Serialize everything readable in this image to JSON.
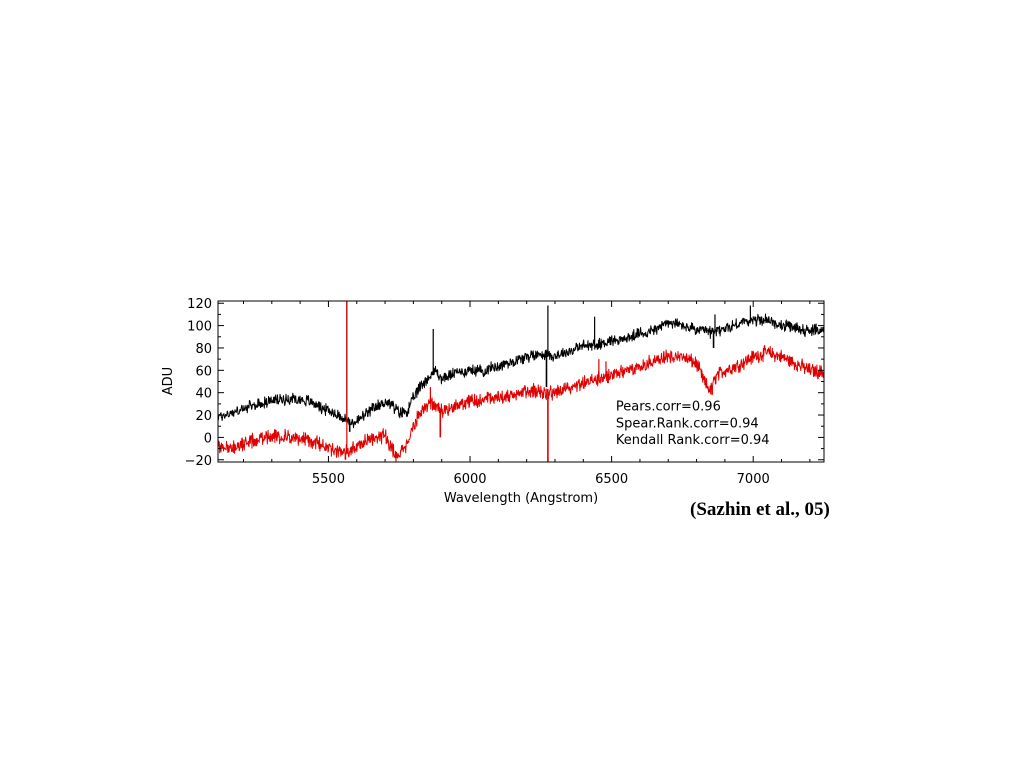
{
  "chart_data": {
    "type": "line",
    "title": "",
    "xlabel": "Wavelength (Angstrom)",
    "ylabel": "ADU",
    "xlim": [
      5110,
      7250
    ],
    "ylim": [
      -22,
      122
    ],
    "x_ticks": [
      5500,
      6000,
      6500,
      7000
    ],
    "y_ticks": [
      -20,
      0,
      20,
      40,
      60,
      80,
      100,
      120
    ],
    "legend": "none",
    "grid": false,
    "series": [
      {
        "color": "#000000",
        "noise": 4,
        "points": [
          [
            5110,
            18
          ],
          [
            5160,
            22
          ],
          [
            5230,
            28
          ],
          [
            5300,
            33
          ],
          [
            5380,
            35
          ],
          [
            5440,
            32
          ],
          [
            5480,
            26
          ],
          [
            5520,
            22
          ],
          [
            5560,
            16
          ],
          [
            5580,
            12
          ],
          [
            5620,
            18
          ],
          [
            5660,
            26
          ],
          [
            5700,
            32
          ],
          [
            5720,
            30
          ],
          [
            5750,
            22
          ],
          [
            5780,
            24
          ],
          [
            5800,
            35
          ],
          [
            5830,
            48
          ],
          [
            5860,
            55
          ],
          [
            5880,
            60
          ],
          [
            5900,
            52
          ],
          [
            5950,
            58
          ],
          [
            6000,
            60
          ],
          [
            6050,
            60
          ],
          [
            6100,
            64
          ],
          [
            6150,
            68
          ],
          [
            6200,
            72
          ],
          [
            6250,
            75
          ],
          [
            6300,
            73
          ],
          [
            6350,
            77
          ],
          [
            6400,
            82
          ],
          [
            6450,
            83
          ],
          [
            6500,
            87
          ],
          [
            6550,
            88
          ],
          [
            6600,
            93
          ],
          [
            6650,
            96
          ],
          [
            6700,
            103
          ],
          [
            6750,
            100
          ],
          [
            6800,
            96
          ],
          [
            6850,
            94
          ],
          [
            6900,
            97
          ],
          [
            6950,
            102
          ],
          [
            7000,
            105
          ],
          [
            7050,
            105
          ],
          [
            7100,
            100
          ],
          [
            7150,
            98
          ],
          [
            7200,
            95
          ],
          [
            7250,
            97
          ]
        ],
        "spikes": [
          {
            "x": 5565,
            "y": 122
          },
          {
            "x": 5870,
            "y": 97
          },
          {
            "x": 6275,
            "y": 118
          },
          {
            "x": 6440,
            "y": 108
          },
          {
            "x": 6865,
            "y": 110
          },
          {
            "x": 6990,
            "y": 118
          }
        ],
        "dips": [
          {
            "x": 5575,
            "y": 5
          },
          {
            "x": 5760,
            "y": 18
          },
          {
            "x": 6270,
            "y": 45
          },
          {
            "x": 6860,
            "y": 80
          }
        ]
      },
      {
        "color": "#e00000",
        "noise": 5,
        "points": [
          [
            5110,
            -8
          ],
          [
            5160,
            -10
          ],
          [
            5230,
            -3
          ],
          [
            5300,
            2
          ],
          [
            5380,
            0
          ],
          [
            5440,
            -3
          ],
          [
            5480,
            -8
          ],
          [
            5520,
            -12
          ],
          [
            5560,
            -14
          ],
          [
            5600,
            -8
          ],
          [
            5650,
            -2
          ],
          [
            5700,
            2
          ],
          [
            5720,
            -8
          ],
          [
            5740,
            -17
          ],
          [
            5760,
            -14
          ],
          [
            5780,
            -6
          ],
          [
            5800,
            12
          ],
          [
            5830,
            22
          ],
          [
            5860,
            30
          ],
          [
            5880,
            28
          ],
          [
            5900,
            24
          ],
          [
            5950,
            28
          ],
          [
            6000,
            32
          ],
          [
            6050,
            33
          ],
          [
            6100,
            36
          ],
          [
            6150,
            38
          ],
          [
            6200,
            42
          ],
          [
            6250,
            40
          ],
          [
            6300,
            40
          ],
          [
            6350,
            44
          ],
          [
            6400,
            48
          ],
          [
            6450,
            52
          ],
          [
            6500,
            56
          ],
          [
            6550,
            60
          ],
          [
            6600,
            64
          ],
          [
            6650,
            68
          ],
          [
            6700,
            72
          ],
          [
            6750,
            72
          ],
          [
            6800,
            66
          ],
          [
            6830,
            48
          ],
          [
            6850,
            42
          ],
          [
            6870,
            55
          ],
          [
            6900,
            60
          ],
          [
            6950,
            65
          ],
          [
            7000,
            72
          ],
          [
            7050,
            76
          ],
          [
            7100,
            72
          ],
          [
            7150,
            66
          ],
          [
            7200,
            60
          ],
          [
            7250,
            58
          ]
        ],
        "spikes": [
          {
            "x": 5565,
            "y": 122
          },
          {
            "x": 5860,
            "y": 45
          },
          {
            "x": 6455,
            "y": 70
          },
          {
            "x": 6480,
            "y": 68
          }
        ],
        "dips": [
          {
            "x": 5560,
            "y": -20
          },
          {
            "x": 5745,
            "y": -18
          },
          {
            "x": 5895,
            "y": 0
          },
          {
            "x": 6275,
            "y": -22
          },
          {
            "x": 6855,
            "y": 38
          }
        ]
      }
    ],
    "annotations": [
      {
        "text": "Pears.corr=0.96",
        "x": 6515,
        "y": 24
      },
      {
        "text": "Spear.Rank.corr=0.94",
        "x": 6515,
        "y": 9
      },
      {
        "text": "Kendall Rank.corr=0.94",
        "x": 6515,
        "y": -6
      }
    ]
  },
  "citation": "(Sazhin et al., 05)"
}
